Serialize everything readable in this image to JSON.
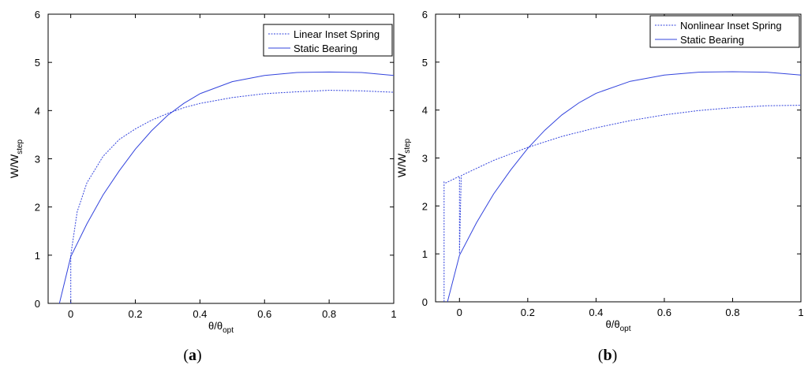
{
  "colors": {
    "series": "#3344dd",
    "axis": "#000000"
  },
  "chart_data": [
    {
      "type": "line",
      "panel_label": "a",
      "xlabel": {
        "base": "θ/θ",
        "sub": "opt"
      },
      "ylabel": {
        "base": "W/W",
        "sub": "step"
      },
      "xlim": [
        -0.07,
        1.0
      ],
      "ylim": [
        0,
        6
      ],
      "xticks": [
        0,
        0.2,
        0.4,
        0.6,
        0.8,
        1
      ],
      "xtick_labels": [
        "0",
        "0.2",
        "0.4",
        "0.6",
        "0.8",
        "1"
      ],
      "yticks": [
        0,
        1,
        2,
        3,
        4,
        5,
        6
      ],
      "ytick_labels": [
        "0",
        "1",
        "2",
        "3",
        "4",
        "5",
        "6"
      ],
      "legend_position": "top-right",
      "series": [
        {
          "name": "Linear Inset Spring",
          "style": "dashed",
          "x": [
            0,
            0,
            0.02,
            0.05,
            0.1,
            0.15,
            0.2,
            0.25,
            0.3,
            0.35,
            0.4,
            0.5,
            0.6,
            0.7,
            0.8,
            0.9,
            1.0
          ],
          "y": [
            0,
            1.0,
            1.9,
            2.5,
            3.05,
            3.4,
            3.62,
            3.8,
            3.94,
            4.06,
            4.15,
            4.27,
            4.35,
            4.39,
            4.42,
            4.41,
            4.38
          ]
        },
        {
          "name": "Static Bearing",
          "style": "solid",
          "x": [
            -0.035,
            0,
            0.05,
            0.1,
            0.15,
            0.2,
            0.25,
            0.3,
            0.35,
            0.4,
            0.5,
            0.6,
            0.7,
            0.8,
            0.9,
            1.0
          ],
          "y": [
            0,
            0.97,
            1.65,
            2.25,
            2.75,
            3.2,
            3.58,
            3.9,
            4.15,
            4.35,
            4.6,
            4.73,
            4.79,
            4.8,
            4.79,
            4.73
          ]
        }
      ]
    },
    {
      "type": "line",
      "panel_label": "b",
      "xlabel": {
        "base": "θ/θ",
        "sub": "opt"
      },
      "ylabel": {
        "base": "W/W",
        "sub": "step"
      },
      "xlim": [
        -0.07,
        1.0
      ],
      "ylim": [
        0,
        6
      ],
      "xticks": [
        0,
        0.2,
        0.4,
        0.6,
        0.8,
        1
      ],
      "xtick_labels": [
        "0",
        "0.2",
        "0.4",
        "0.6",
        "0.8",
        "1"
      ],
      "yticks": [
        0,
        1,
        2,
        3,
        4,
        5,
        6
      ],
      "ytick_labels": [
        "0",
        "1",
        "2",
        "3",
        "4",
        "5",
        "6"
      ],
      "legend_position": "top-right",
      "series": [
        {
          "name": "Nonlinear Inset Spring",
          "style": "dashed",
          "x": [
            -0.045,
            -0.045,
            -0.04,
            -0.02,
            0,
            0,
            0.005,
            0.01,
            0.1,
            0.2,
            0.3,
            0.4,
            0.5,
            0.6,
            0.7,
            0.8,
            0.9,
            1.0
          ],
          "y": [
            0,
            2.5,
            2.48,
            2.55,
            2.62,
            1.0,
            2.63,
            2.65,
            2.95,
            3.22,
            3.45,
            3.63,
            3.78,
            3.9,
            3.99,
            4.05,
            4.09,
            4.1
          ]
        },
        {
          "name": "Static Bearing",
          "style": "solid",
          "x": [
            -0.035,
            0,
            0.05,
            0.1,
            0.15,
            0.2,
            0.25,
            0.3,
            0.35,
            0.4,
            0.5,
            0.6,
            0.7,
            0.8,
            0.9,
            1.0
          ],
          "y": [
            0,
            0.97,
            1.65,
            2.25,
            2.75,
            3.2,
            3.58,
            3.9,
            4.15,
            4.35,
            4.6,
            4.73,
            4.79,
            4.8,
            4.79,
            4.73
          ]
        }
      ]
    }
  ]
}
